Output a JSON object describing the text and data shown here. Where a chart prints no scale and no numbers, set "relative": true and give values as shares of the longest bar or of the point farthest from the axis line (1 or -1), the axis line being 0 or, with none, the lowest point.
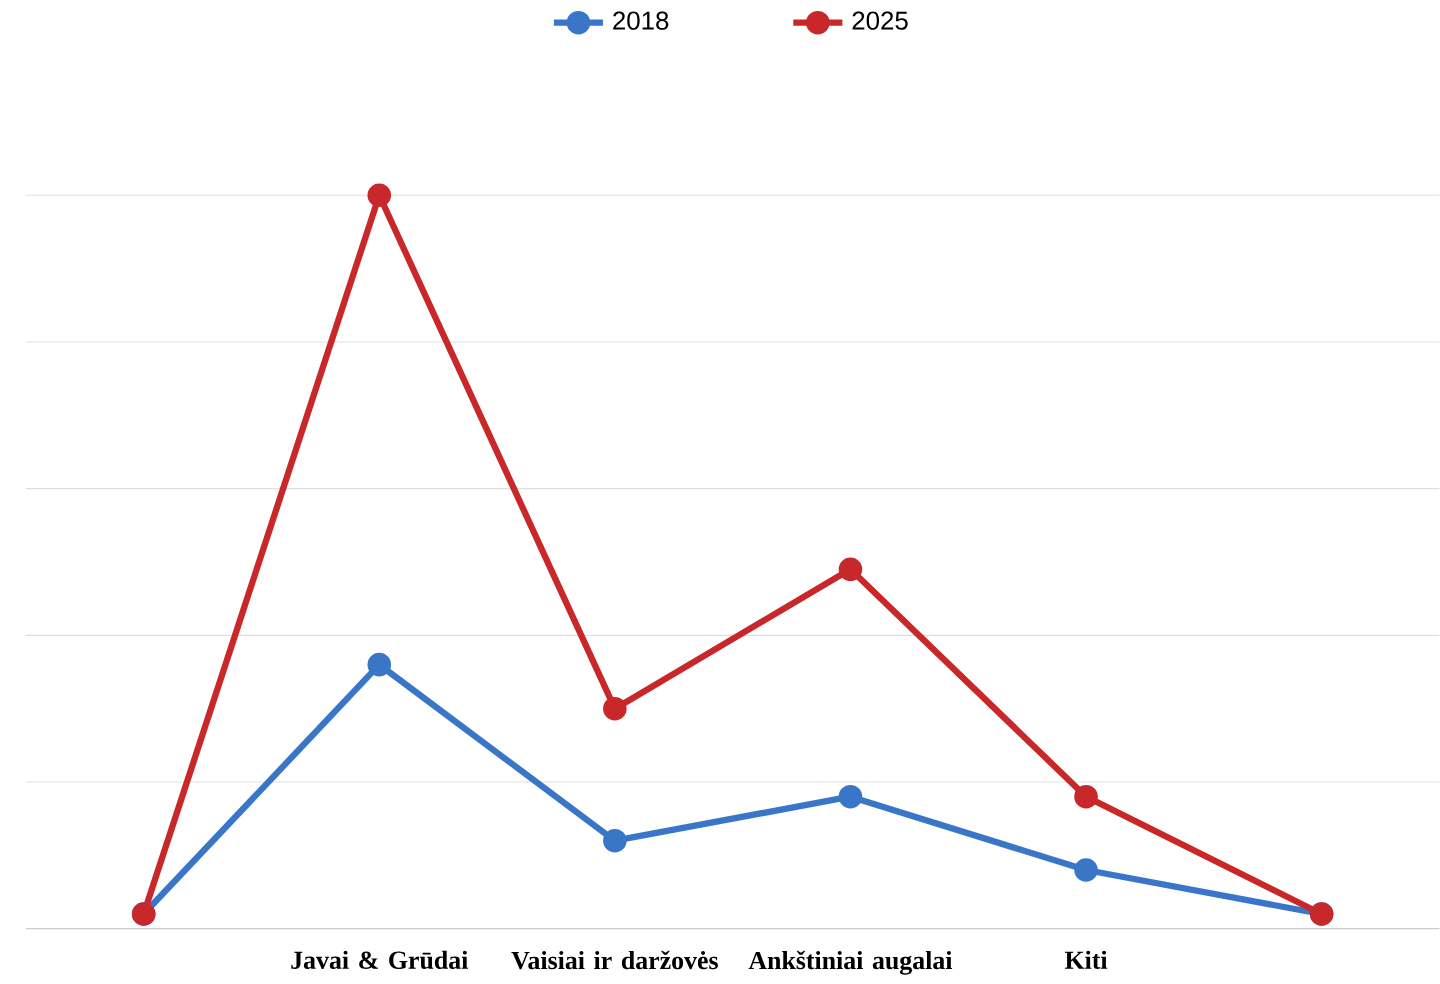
{
  "chart_data": {
    "type": "line",
    "relative": true,
    "categories": [
      null,
      "Javai & Grūdai",
      "Vaisiai ir daržovės",
      "Ankštiniai augalai",
      "Kiti",
      null
    ],
    "series": [
      {
        "name": "2018",
        "color": "#3a76c8",
        "values": [
          0.02,
          0.36,
          0.12,
          0.18,
          0.08,
          0.02
        ]
      },
      {
        "name": "2025",
        "color": "#c8282a",
        "values": [
          0.02,
          1,
          0.3,
          0.49,
          0.18,
          0.02
        ]
      }
    ],
    "marker": "circle",
    "line_style": "solid",
    "grid": "y",
    "legend": "top"
  }
}
